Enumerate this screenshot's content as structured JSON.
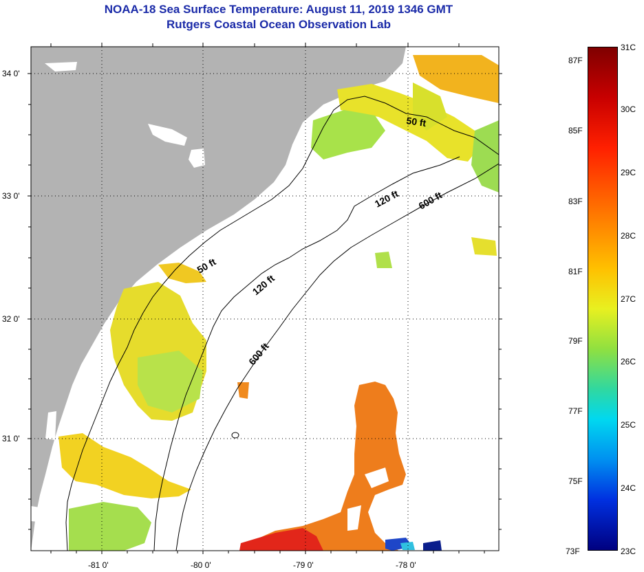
{
  "title": {
    "line1": "NOAA-18 Sea Surface Temperature:  August 11, 2019 1346 GMT",
    "line2": "Rutgers Coastal Ocean Observation Lab"
  },
  "map": {
    "lon_ticks": [
      "-81 0'",
      "-80 0'",
      "-79 0'",
      "-78 0'"
    ],
    "lat_ticks": [
      "34 0'",
      "33 0'",
      "32 0'",
      "31 0'"
    ],
    "contours": {
      "c50_a": "50 ft",
      "c50_b": "50 ft",
      "c120_a": "120 ft",
      "c120_b": "120 ft",
      "c600_a": "600 ft",
      "c600_b": "600 ft"
    },
    "colors": {
      "land": "#b3b3b3",
      "ocean_nodata": "#ffffff",
      "gridline": "#000000"
    }
  },
  "colorbar": {
    "fahrenheit": [
      "87F",
      "85F",
      "83F",
      "81F",
      "79F",
      "77F",
      "75F",
      "73F"
    ],
    "celsius": [
      "31C",
      "30C",
      "29C",
      "28C",
      "27C",
      "26C",
      "25C",
      "24C",
      "23C"
    ],
    "range_c": [
      23,
      31
    ]
  }
}
